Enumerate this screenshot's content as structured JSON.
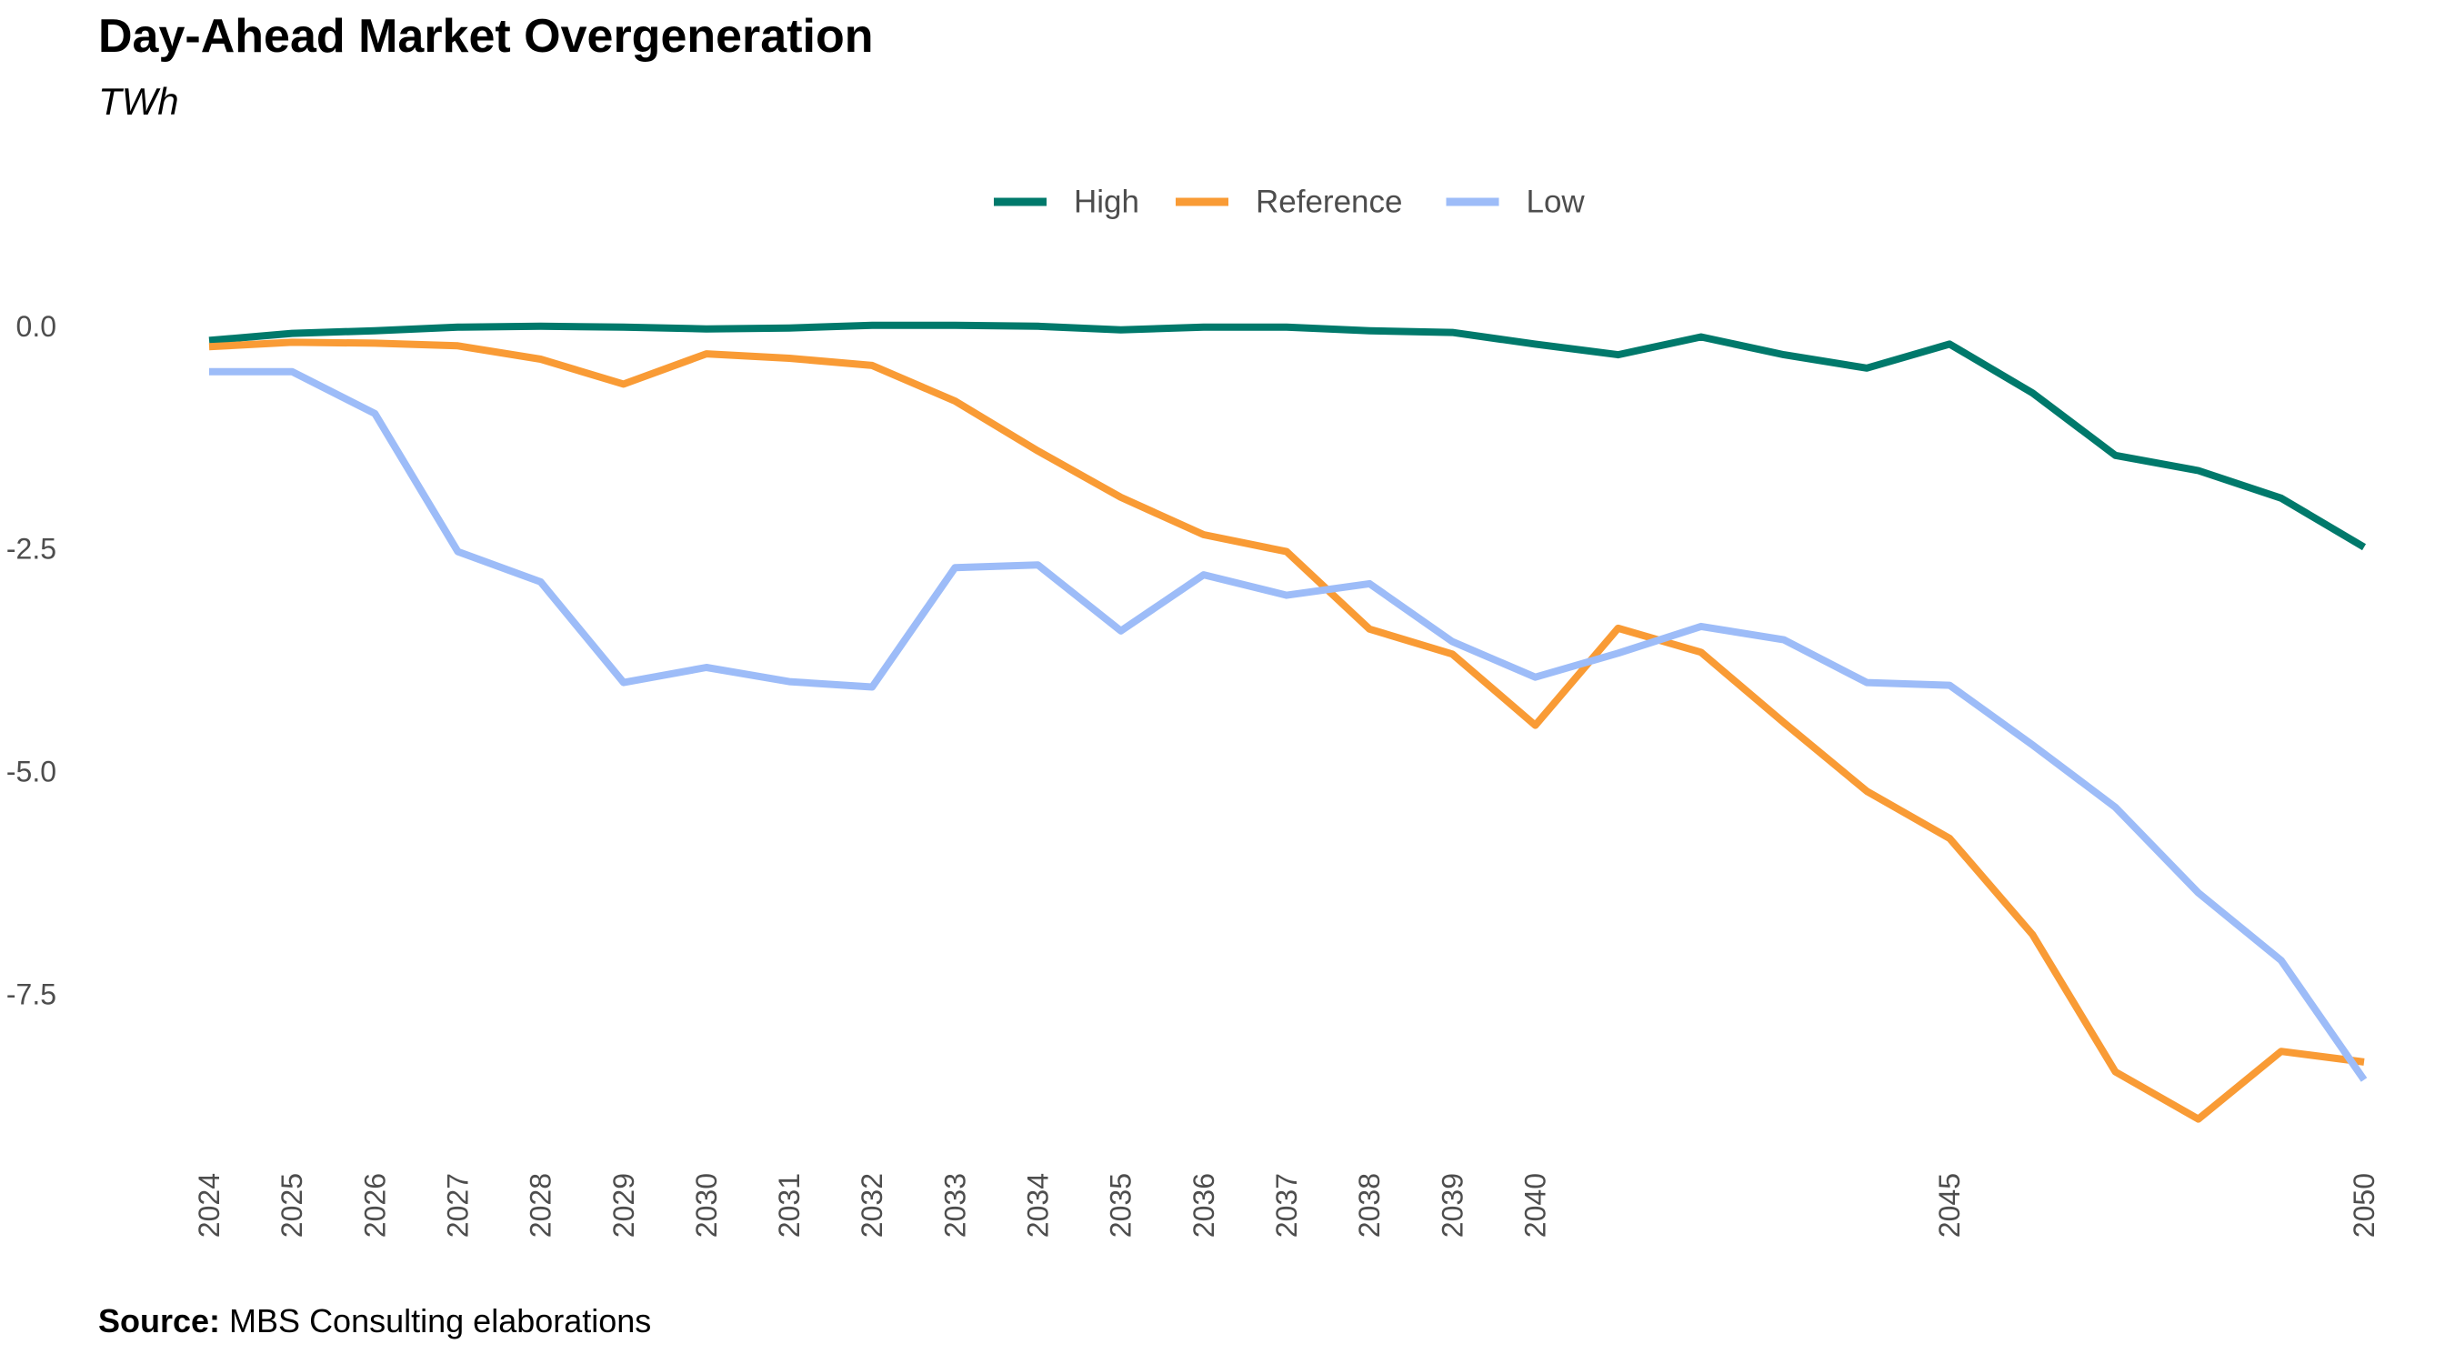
{
  "title": "Day-Ahead Market Overgeneration",
  "subtitle": "TWh",
  "caption": {
    "label": "Source:",
    "text": " MBS Consulting elaborations"
  },
  "chart_data": {
    "type": "line",
    "x": [
      2024,
      2025,
      2026,
      2027,
      2028,
      2029,
      2030,
      2031,
      2032,
      2033,
      2034,
      2035,
      2036,
      2037,
      2038,
      2039,
      2040,
      2041,
      2042,
      2043,
      2044,
      2045,
      2046,
      2047,
      2048,
      2049,
      2050
    ],
    "x_tick_labels": [
      "2024",
      "2025",
      "2026",
      "2027",
      "2028",
      "2029",
      "2030",
      "2031",
      "2032",
      "2033",
      "2034",
      "2035",
      "2036",
      "2037",
      "2038",
      "2039",
      "2040",
      "2045",
      "2050"
    ],
    "y_ticks": [
      0.0,
      -2.5,
      -5.0,
      -7.5
    ],
    "y_tick_labels": [
      "0.0",
      "-2.5",
      "-5.0",
      "-7.5"
    ],
    "ylim": [
      -9.2,
      0.6
    ],
    "xlim": [
      2024,
      2050
    ],
    "grid": false,
    "legend_position": "top",
    "series": [
      {
        "name": "High",
        "color": "#00796b",
        "values": [
          -0.16,
          -0.08,
          -0.05,
          -0.01,
          0.0,
          -0.01,
          -0.03,
          -0.02,
          0.01,
          0.01,
          0.0,
          -0.04,
          -0.01,
          -0.01,
          -0.05,
          -0.07,
          -0.2,
          -0.32,
          -0.12,
          -0.32,
          -0.47,
          -0.2,
          -0.75,
          -1.45,
          -1.62,
          -1.93,
          -2.48
        ]
      },
      {
        "name": "Reference",
        "color": "#f99b35",
        "values": [
          -0.23,
          -0.18,
          -0.19,
          -0.22,
          -0.37,
          -0.65,
          -0.31,
          -0.36,
          -0.44,
          -0.84,
          -1.4,
          -1.92,
          -2.34,
          -2.53,
          -3.4,
          -3.68,
          -4.48,
          -3.39,
          -3.66,
          -4.45,
          -5.22,
          -5.75,
          -6.83,
          -8.37,
          -8.9,
          -8.14,
          -8.26
        ]
      },
      {
        "name": "Low",
        "color": "#9dbcf8",
        "values": [
          -0.51,
          -0.51,
          -0.98,
          -2.53,
          -2.87,
          -4.0,
          -3.83,
          -3.99,
          -4.05,
          -2.71,
          -2.68,
          -3.42,
          -2.79,
          -3.02,
          -2.89,
          -3.54,
          -3.94,
          -3.67,
          -3.37,
          -3.52,
          -4.0,
          -4.03,
          -4.7,
          -5.4,
          -6.36,
          -7.12,
          -8.46
        ]
      }
    ]
  }
}
